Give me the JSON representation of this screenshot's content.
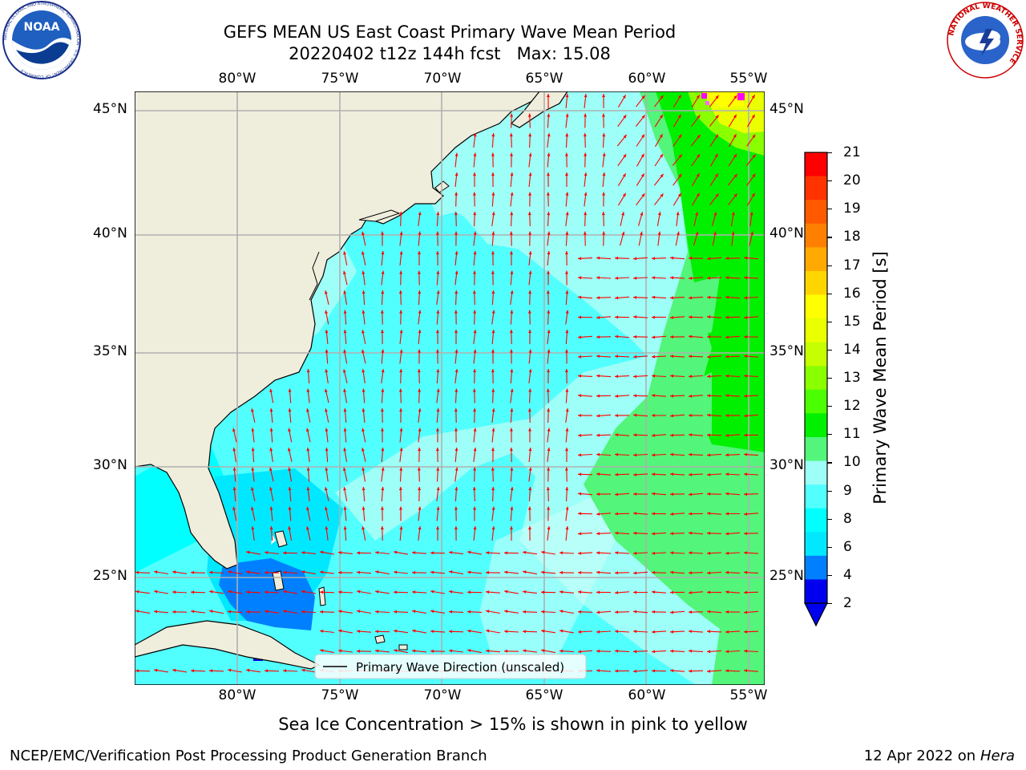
{
  "header": {
    "title_line1": "GEFS MEAN US East Coast Primary Wave Mean Period",
    "title_line2": "20220402 t12z 144h fcst   Max: 15.08"
  },
  "logos": {
    "left": {
      "name": "NOAA",
      "text": "NOAA",
      "ring_text": "NATIONAL OCEANIC AND ATMOSPHERIC ADMINISTRATION · U.S. DEPARTMENT OF COMMERCE"
    },
    "right": {
      "name": "National Weather Service",
      "ring_text": "NATIONAL WEATHER SERVICE"
    }
  },
  "map": {
    "lon_labels": [
      "80°W",
      "75°W",
      "70°W",
      "65°W",
      "60°W",
      "55°W"
    ],
    "lat_labels": [
      "45°N",
      "40°N",
      "35°N",
      "30°N",
      "25°N"
    ],
    "legend_label": "Primary Wave Direction (unscaled)",
    "land_color": "#efeddc",
    "arrow_color": "#ff0000",
    "grid_color": "#b0b0b0"
  },
  "colorbar": {
    "label": "Primary Wave Mean Period [s]",
    "ticks": [
      "21",
      "20",
      "19",
      "18",
      "17",
      "16",
      "15",
      "14",
      "13",
      "12",
      "11",
      "10",
      "9",
      "8",
      "6",
      "4",
      "2"
    ],
    "colors": [
      "#ff0000",
      "#ff3300",
      "#ff5a00",
      "#ff8000",
      "#ffaa00",
      "#ffd500",
      "#ffff00",
      "#eaff00",
      "#c6ff00",
      "#8aff00",
      "#4cff00",
      "#00f000",
      "#53f57a",
      "#9dfff7",
      "#52ffff",
      "#00ffff",
      "#00e8ff",
      "#0080ff",
      "#0000ee"
    ],
    "extend": "min"
  },
  "notes": {
    "sea_ice": "Sea Ice Concentration > 15% is shown in pink to yellow"
  },
  "footer": {
    "left": "NCEP/EMC/Verification Post Processing Product Generation Branch",
    "right_date": "12 Apr 2022 on ",
    "right_machine": "Hera"
  }
}
